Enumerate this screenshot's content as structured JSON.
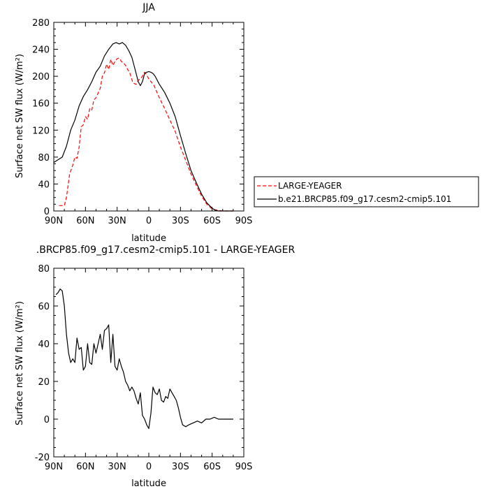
{
  "chart_data": [
    {
      "type": "line",
      "title": "JJA",
      "xlabel": "latitude",
      "ylabel": "Surface net SW flux (W/m²)",
      "xlim": [
        90,
        -90
      ],
      "ylim": [
        0,
        280
      ],
      "xticks": [
        90,
        60,
        30,
        0,
        -30,
        -60,
        -90
      ],
      "xtick_labels": [
        "90N",
        "60N",
        "30N",
        "0",
        "30S",
        "60S",
        "90S"
      ],
      "yticks": [
        0,
        40,
        80,
        120,
        160,
        200,
        240,
        280
      ],
      "ytick_labels": [
        "0",
        "40",
        "80",
        "120",
        "160",
        "200",
        "240",
        "280"
      ],
      "legend_position": "right",
      "series": [
        {
          "name": "LARGE-YEAGER",
          "color": "#ff0000",
          "dash": "dashed",
          "x": [
            85,
            80,
            78,
            75,
            72,
            70,
            68,
            66,
            64,
            62,
            60,
            58,
            56,
            54,
            52,
            50,
            48,
            46,
            44,
            42,
            40,
            38,
            36,
            34,
            32,
            30,
            28,
            26,
            24,
            22,
            20,
            18,
            15,
            12,
            10,
            8,
            6,
            4,
            2,
            0,
            -5,
            -10,
            -15,
            -20,
            -25,
            -30,
            -35,
            -40,
            -45,
            -50,
            -55,
            -60,
            -65,
            -70,
            -75,
            -80
          ],
          "values": [
            8,
            8,
            20,
            55,
            68,
            80,
            78,
            95,
            125,
            128,
            140,
            136,
            152,
            150,
            165,
            168,
            175,
            182,
            200,
            205,
            218,
            210,
            225,
            216,
            222,
            226,
            227,
            222,
            220,
            216,
            210,
            205,
            190,
            188,
            194,
            196,
            200,
            206,
            202,
            196,
            186,
            168,
            152,
            135,
            118,
            95,
            75,
            55,
            38,
            22,
            10,
            3,
            1,
            0,
            0,
            0
          ]
        },
        {
          "name": "b.e21.BRCP85.f09_g17.cesm2-cmip5.101",
          "color": "#000000",
          "dash": "solid",
          "x": [
            90,
            86,
            82,
            78,
            74,
            70,
            66,
            62,
            58,
            54,
            50,
            46,
            42,
            38,
            34,
            31,
            28,
            25,
            22,
            19,
            16,
            13,
            10,
            8,
            6,
            4,
            2,
            0,
            -2,
            -4,
            -6,
            -10,
            -15,
            -20,
            -25,
            -30,
            -35,
            -40,
            -45,
            -50,
            -55,
            -60,
            -63,
            -66,
            -70,
            -75,
            -80
          ],
          "values": [
            72,
            76,
            80,
            96,
            120,
            135,
            156,
            170,
            180,
            192,
            206,
            215,
            230,
            240,
            248,
            250,
            248,
            250,
            246,
            238,
            228,
            210,
            192,
            186,
            192,
            204,
            206,
            207,
            206,
            204,
            200,
            188,
            176,
            160,
            140,
            112,
            85,
            60,
            42,
            25,
            12,
            4,
            1,
            0,
            0,
            0,
            0
          ]
        }
      ]
    },
    {
      "type": "line",
      "title": ".BRCP85.f09_g17.cesm2-cmip5.101 - LARGE-YEAGER",
      "xlabel": "latitude",
      "ylabel": "Surface net SW flux (W/m²)",
      "xlim": [
        90,
        -90
      ],
      "ylim": [
        -20,
        80
      ],
      "xticks": [
        90,
        60,
        30,
        0,
        -30,
        -60,
        -90
      ],
      "xtick_labels": [
        "90N",
        "60N",
        "30N",
        "0",
        "30S",
        "60S",
        "90S"
      ],
      "yticks": [
        -20,
        0,
        20,
        40,
        60,
        80
      ],
      "ytick_labels": [
        "-20",
        "0",
        "20",
        "40",
        "60",
        "80"
      ],
      "series": [
        {
          "color": "#000000",
          "x": [
            88,
            86,
            84,
            82,
            80,
            78,
            76,
            74,
            72,
            70,
            68,
            66,
            64,
            62,
            60,
            58,
            56,
            54,
            52,
            50,
            48,
            46,
            44,
            42,
            40,
            38,
            36,
            34,
            32,
            30,
            28,
            26,
            24,
            22,
            20,
            18,
            16,
            14,
            12,
            10,
            8,
            6,
            4,
            2,
            0,
            -2,
            -4,
            -6,
            -8,
            -10,
            -12,
            -14,
            -16,
            -18,
            -20,
            -22,
            -24,
            -26,
            -28,
            -30,
            -32,
            -35,
            -38,
            -42,
            -46,
            -50,
            -54,
            -58,
            -62,
            -66,
            -70,
            -74,
            -78,
            -80
          ],
          "values": [
            66,
            67,
            69,
            68,
            60,
            45,
            35,
            30,
            32,
            30,
            43,
            37,
            38,
            26,
            28,
            40,
            30,
            29,
            40,
            35,
            40,
            45,
            37,
            47,
            48,
            50,
            30,
            45,
            28,
            26,
            32,
            28,
            25,
            20,
            18,
            15,
            17,
            15,
            11,
            8,
            14,
            2,
            0,
            -3,
            -5,
            3,
            17,
            14,
            13,
            16,
            10,
            9,
            12,
            11,
            16,
            14,
            12,
            10,
            6,
            1,
            -3,
            -4,
            -3,
            -2,
            -1,
            -2,
            0,
            0,
            1,
            0,
            0,
            0,
            0,
            0
          ]
        }
      ]
    }
  ]
}
